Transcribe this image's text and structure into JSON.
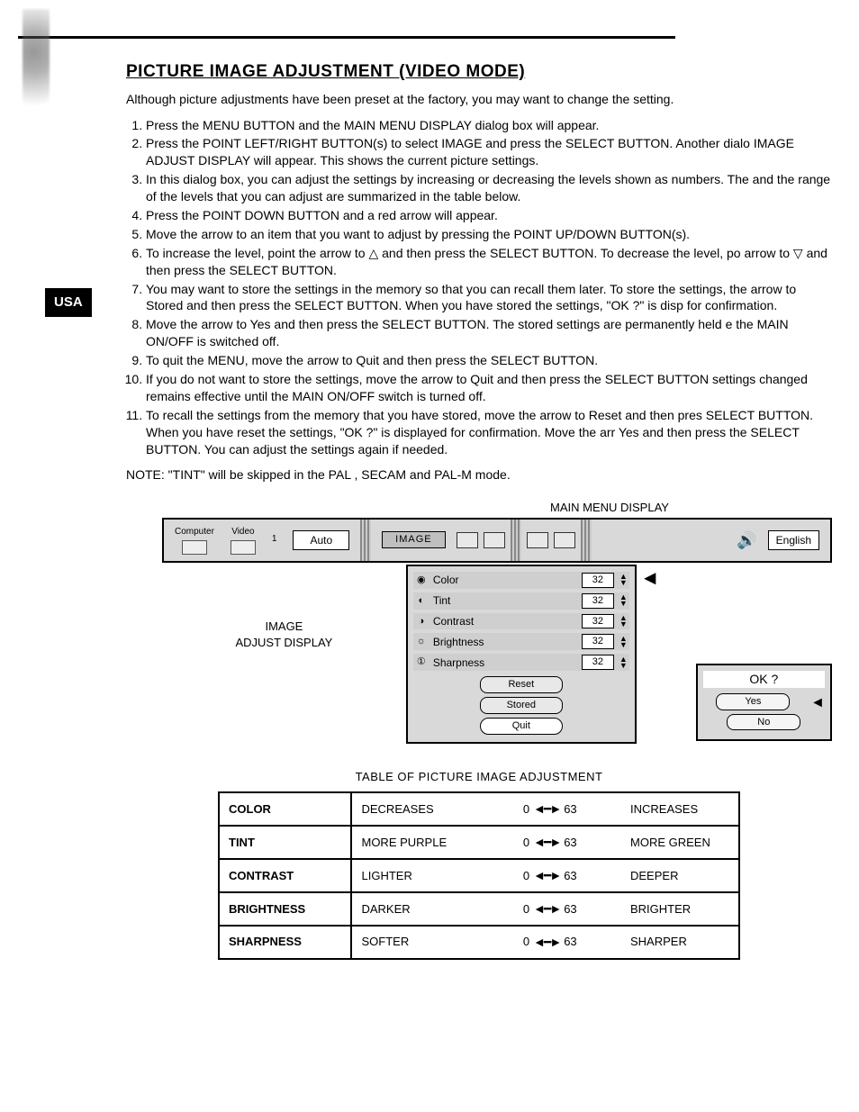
{
  "title": "PICTURE IMAGE ADJUSTMENT (VIDEO MODE)",
  "side_badge": "USA",
  "intro": "Although picture adjustments have been preset at the factory, you may want to change the setting.",
  "steps": [
    "Press the MENU BUTTON and the MAIN MENU DISPLAY dialog box will appear.",
    "Press the POINT LEFT/RIGHT BUTTON(s) to select IMAGE and press the SELECT BUTTON. Another dialo IMAGE ADJUST DISPLAY will appear. This shows the current picture settings.",
    "In this dialog box, you can adjust the settings by increasing or decreasing the levels shown as numbers. The and the range of the levels that you can adjust are summarized in the table below.",
    "Press the POINT DOWN BUTTON and a red arrow will appear.",
    "Move the arrow to an item that you want to adjust by pressing the POINT UP/DOWN BUTTON(s).",
    "To increase the level, point the arrow to △ and then press the SELECT BUTTON. To decrease the level, po arrow to ▽ and then press the SELECT BUTTON.",
    "You may want to store the settings in the memory so that you can recall them later. To store the settings, the arrow to Stored and then press the SELECT BUTTON. When you have stored the settings, \"OK ?\" is disp for confirmation.",
    "Move the arrow to Yes and then press the SELECT BUTTON. The stored settings are permanently held e the MAIN ON/OFF is switched off.",
    "To quit the MENU, move the arrow to Quit and then press the SELECT BUTTON.",
    "If you do not want to store the settings, move the arrow to Quit and then press the SELECT BUTTON settings changed remains effective until the MAIN ON/OFF switch is turned off.",
    "To recall the settings from the memory that you have stored, move the arrow to Reset and then pres SELECT BUTTON. When you have reset the settings, \"OK ?\" is displayed for confirmation. Move the arr Yes and then press the SELECT BUTTON. You can adjust the settings again if needed."
  ],
  "note": "NOTE: \"TINT\" will be skipped in the PAL , SECAM and PAL-M mode.",
  "menu": {
    "title": "MAIN MENU DISPLAY",
    "computer": "Computer",
    "video": "Video",
    "one": "1",
    "auto": "Auto",
    "image": "IMAGE",
    "english": "English",
    "adjust_label_1": "IMAGE",
    "adjust_label_2": "ADJUST DISPLAY",
    "params": [
      {
        "icon": "◉",
        "name": "Color",
        "value": "32"
      },
      {
        "icon": "◐",
        "name": "Tint",
        "value": "32"
      },
      {
        "icon": "◑",
        "name": "Contrast",
        "value": "32"
      },
      {
        "icon": "☼",
        "name": "Brightness",
        "value": "32"
      },
      {
        "icon": "①",
        "name": "Sharpness",
        "value": "32"
      }
    ],
    "buttons": {
      "reset": "Reset",
      "stored": "Stored",
      "quit": "Quit"
    },
    "ok": {
      "q": "OK ?",
      "yes": "Yes",
      "no": "No"
    }
  },
  "table": {
    "title": "TABLE OF PICTURE IMAGE ADJUSTMENT",
    "range_lo": "0",
    "range_hi": "63",
    "rows": [
      {
        "name": "COLOR",
        "low": "DECREASES",
        "high": "INCREASES"
      },
      {
        "name": "TINT",
        "low": "MORE PURPLE",
        "high": "MORE GREEN"
      },
      {
        "name": "CONTRAST",
        "low": "LIGHTER",
        "high": "DEEPER"
      },
      {
        "name": "BRIGHTNESS",
        "low": "DARKER",
        "high": "BRIGHTER"
      },
      {
        "name": "SHARPNESS",
        "low": "SOFTER",
        "high": "SHARPER"
      }
    ]
  }
}
